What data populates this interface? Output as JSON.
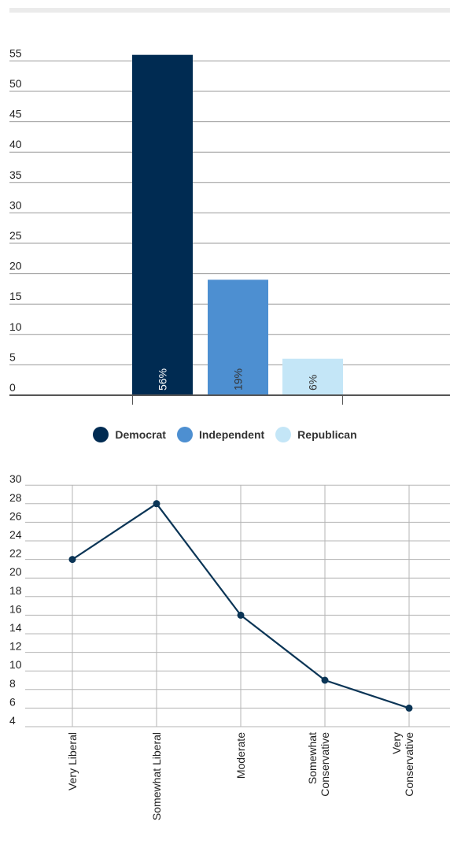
{
  "chart_data": [
    {
      "type": "bar",
      "categories": [
        "Democrat",
        "Independent",
        "Republican"
      ],
      "values": [
        56,
        19,
        6
      ],
      "data_labels": [
        "56%",
        "19%",
        "6%"
      ],
      "colors": [
        "#002b52",
        "#4d8fd1",
        "#c4e6f7"
      ],
      "label_colors": [
        "#ffffff",
        "#333333",
        "#333333"
      ],
      "y_ticks": [
        "0",
        "5",
        "10",
        "15",
        "20",
        "25",
        "30",
        "35",
        "40",
        "45",
        "50",
        "55"
      ],
      "ylim": [
        0,
        55
      ],
      "grid": true,
      "legend": {
        "position": "bottom-center",
        "entries": [
          "Democrat",
          "Independent",
          "Republican"
        ]
      }
    },
    {
      "type": "line",
      "categories": [
        "Very Liberal",
        "Somewhat Liberal",
        "Moderate",
        "Somewhat Conservative",
        "Very Conservative"
      ],
      "category_labels": [
        [
          "Very Liberal"
        ],
        [
          "Somewhat Liberal"
        ],
        [
          "Moderate"
        ],
        [
          "Somewhat",
          "Conservative"
        ],
        [
          "Very",
          "Conservative"
        ]
      ],
      "values": [
        22,
        28,
        16,
        9,
        6
      ],
      "y_ticks": [
        "4",
        "6",
        "8",
        "10",
        "12",
        "14",
        "16",
        "18",
        "20",
        "22",
        "24",
        "26",
        "28",
        "30"
      ],
      "ylim": [
        3,
        30
      ],
      "color": "#0b3556",
      "grid": true
    }
  ]
}
